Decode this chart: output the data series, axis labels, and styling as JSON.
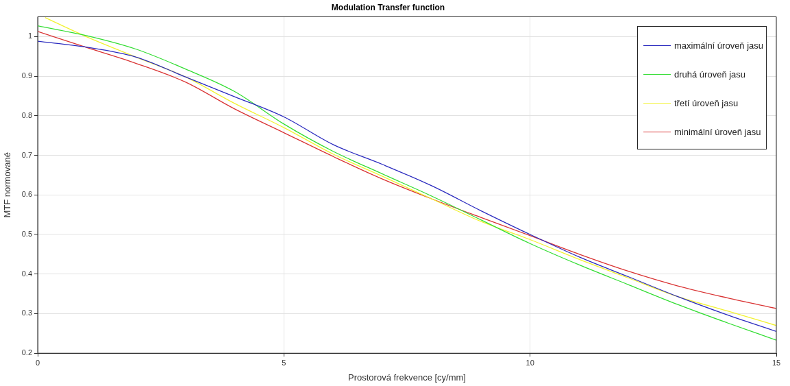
{
  "chart_data": {
    "type": "line",
    "title": "Modulation Transfer function",
    "xlabel": "Prostorová frekvence [cy/mm]",
    "ylabel": "MTF normované",
    "xlim": [
      0,
      15
    ],
    "xticks": [
      0,
      5,
      10,
      15
    ],
    "ylim": [
      0.2,
      1.05
    ],
    "yticks": [
      0.2,
      0.3,
      0.4,
      0.5,
      0.6,
      0.7,
      0.8,
      0.9,
      1
    ],
    "grid": true,
    "legend": "top right",
    "marker": "none",
    "line_style": "solid",
    "series": [
      {
        "name": "maximální úroveň jasu",
        "color": "#2b2bbf",
        "x": [
          0,
          1,
          2,
          3,
          4,
          5,
          6,
          7,
          8,
          9,
          10,
          11,
          12,
          13,
          14,
          15
        ],
        "values": [
          0.988,
          0.973,
          0.948,
          0.898,
          0.848,
          0.797,
          0.727,
          0.677,
          0.623,
          0.56,
          0.5,
          0.443,
          0.393,
          0.343,
          0.297,
          0.255
        ]
      },
      {
        "name": "druhá úroveň jasu",
        "color": "#33dd33",
        "x": [
          0,
          1,
          2,
          3,
          4,
          5,
          6,
          7,
          8,
          9,
          10,
          11,
          12,
          13,
          14,
          15
        ],
        "values": [
          1.027,
          1.002,
          0.968,
          0.918,
          0.861,
          0.779,
          0.71,
          0.653,
          0.597,
          0.537,
          0.477,
          0.423,
          0.373,
          0.323,
          0.277,
          0.233
        ]
      },
      {
        "name": "třetí úroveň jasu",
        "color": "#f2f230",
        "x": [
          0.15,
          1,
          2,
          3,
          4,
          5,
          6,
          7,
          8,
          9,
          10,
          11,
          12,
          13,
          14,
          15
        ],
        "values": [
          1.048,
          0.999,
          0.948,
          0.898,
          0.831,
          0.77,
          0.703,
          0.647,
          0.59,
          0.533,
          0.487,
          0.437,
          0.39,
          0.343,
          0.307,
          0.27
        ]
      },
      {
        "name": "minimální úroveň jasu",
        "color": "#d93333",
        "x": [
          0,
          1,
          2,
          3,
          4,
          5,
          6,
          7,
          8,
          9,
          10,
          11,
          12,
          13,
          14,
          15
        ],
        "values": [
          1.013,
          0.972,
          0.932,
          0.885,
          0.817,
          0.757,
          0.697,
          0.64,
          0.59,
          0.543,
          0.497,
          0.45,
          0.407,
          0.37,
          0.34,
          0.313
        ]
      }
    ]
  }
}
